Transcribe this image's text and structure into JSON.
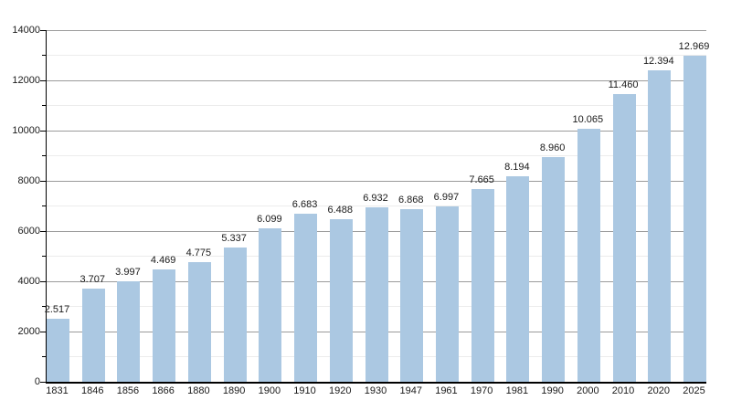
{
  "chart_data": {
    "type": "bar",
    "title": "",
    "xlabel": "",
    "ylabel": "",
    "categories": [
      "1831",
      "1846",
      "1856",
      "1866",
      "1880",
      "1890",
      "1900",
      "1910",
      "1920",
      "1930",
      "1947",
      "1961",
      "1970",
      "1981",
      "1990",
      "2000",
      "2010",
      "2020",
      "2025"
    ],
    "values": [
      2517,
      3707,
      3997,
      4469,
      4775,
      5337,
      6099,
      6683,
      6488,
      6932,
      6868,
      6997,
      7665,
      8194,
      8960,
      10065,
      11460,
      12394,
      12969
    ],
    "value_labels": [
      "2.517",
      "3.707",
      "3.997",
      "4.469",
      "4.775",
      "5.337",
      "6.099",
      "6.683",
      "6.488",
      "6.932",
      "6.868",
      "6.997",
      "7.665",
      "8.194",
      "8.960",
      "10.065",
      "11.460",
      "12.394",
      "12.969"
    ],
    "ylim": [
      0,
      14000
    ],
    "y_major_ticks": [
      0,
      2000,
      4000,
      6000,
      8000,
      10000,
      12000,
      14000
    ],
    "y_major_tick_labels": [
      "0",
      "2000",
      "4000",
      "6000",
      "8000",
      "10000",
      "12000",
      "14000"
    ],
    "y_minor_step": 1000,
    "grid": "horizontal, major and minor",
    "legend": "none",
    "colors": {
      "bar_fill": "#abc8e2",
      "grid_major": "#9b9b9b",
      "grid_minor": "#ececec",
      "axis": "#000000",
      "text": "#1a1a1a",
      "background": "#ffffff"
    }
  }
}
